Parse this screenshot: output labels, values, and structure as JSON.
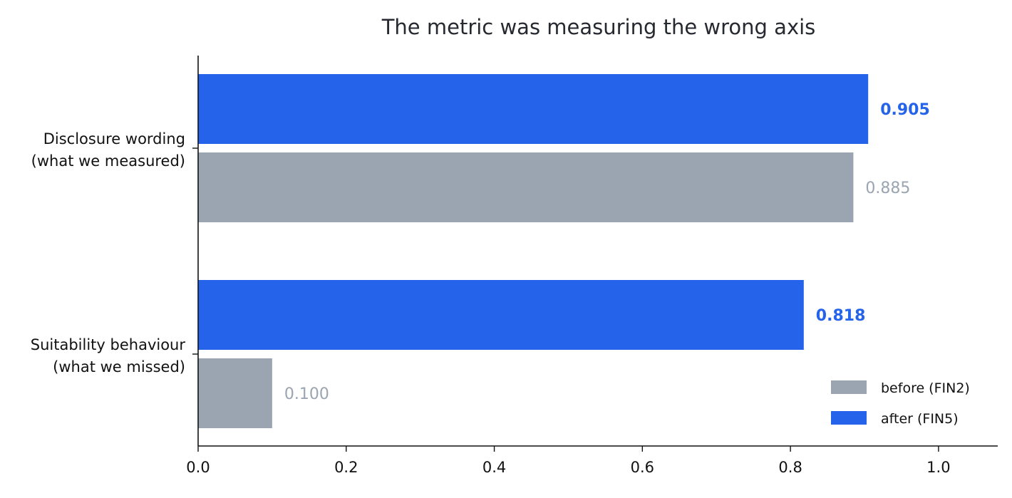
{
  "chart_data": {
    "type": "bar",
    "orientation": "horizontal",
    "title": "The metric was measuring the wrong axis",
    "xlabel": "",
    "ylabel": "",
    "xlim": [
      0,
      1.08
    ],
    "xticks": [
      0.0,
      0.2,
      0.4,
      0.6,
      0.8,
      1.0
    ],
    "xtick_labels": [
      "0.0",
      "0.2",
      "0.4",
      "0.6",
      "0.8",
      "1.0"
    ],
    "grid": false,
    "legend_position": "bottom-right",
    "categories": [
      [
        "Disclosure wording",
        "(what we measured)"
      ],
      [
        "Suitability behaviour",
        "(what we missed)"
      ]
    ],
    "series": [
      {
        "name": "before (FIN2)",
        "color": "#9aa5b1",
        "values": [
          0.885,
          0.1
        ],
        "labels": [
          "0.885",
          "0.100"
        ],
        "label_color": "#9aa5b1",
        "label_bold": false
      },
      {
        "name": "after (FIN5)",
        "color": "#2563eb",
        "values": [
          0.905,
          0.818
        ],
        "labels": [
          "0.905",
          "0.818"
        ],
        "label_color": "#2563eb",
        "label_bold": true
      }
    ]
  }
}
